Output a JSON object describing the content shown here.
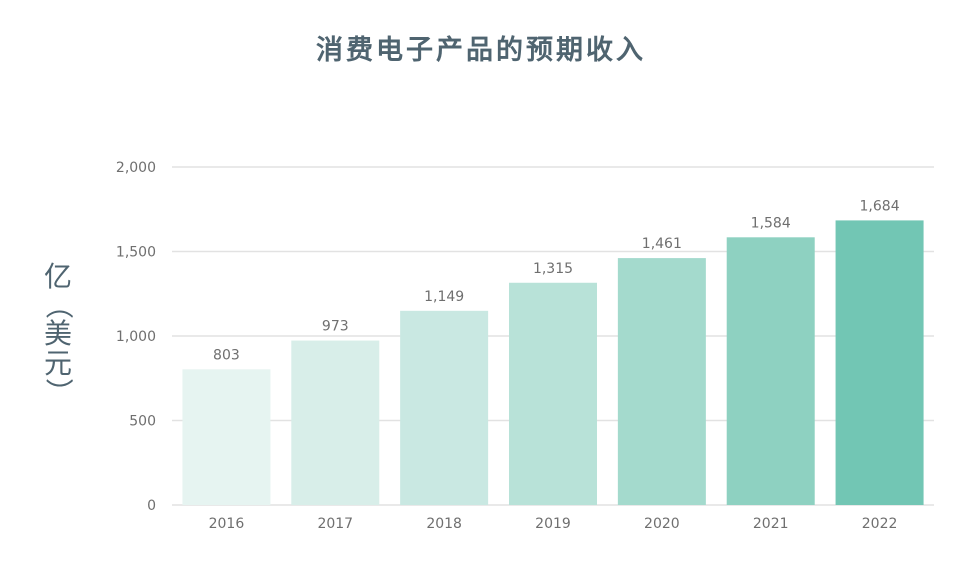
{
  "chart_data": {
    "type": "bar",
    "title": "消费电子产品的预期收入",
    "ylabel": "亿（美元）",
    "ylabel_chars": [
      "亿",
      "（",
      "美",
      "元",
      "）"
    ],
    "categories": [
      "2016",
      "2017",
      "2018",
      "2019",
      "2020",
      "2021",
      "2022"
    ],
    "values": [
      803,
      973,
      1149,
      1315,
      1461,
      1584,
      1684
    ],
    "value_labels": [
      "803",
      "973",
      "1,149",
      "1,315",
      "1,461",
      "1,584",
      "1,684"
    ],
    "yticks": [
      0,
      500,
      1000,
      1500,
      2000
    ],
    "ytick_labels": [
      "0",
      "500",
      "1,000",
      "1,500",
      "2,000"
    ],
    "ylim": [
      0,
      2000
    ],
    "grid": true,
    "legend": "none",
    "bar_colors": [
      "#e6f4f1",
      "#d8eee9",
      "#c9e8e2",
      "#b8e2d8",
      "#a4dacd",
      "#8ed1c1",
      "#72c6b4"
    ],
    "gridline_color": "#e2e2e2",
    "axis_text_color": "#6f6f6f",
    "title_color": "#4f6470"
  }
}
